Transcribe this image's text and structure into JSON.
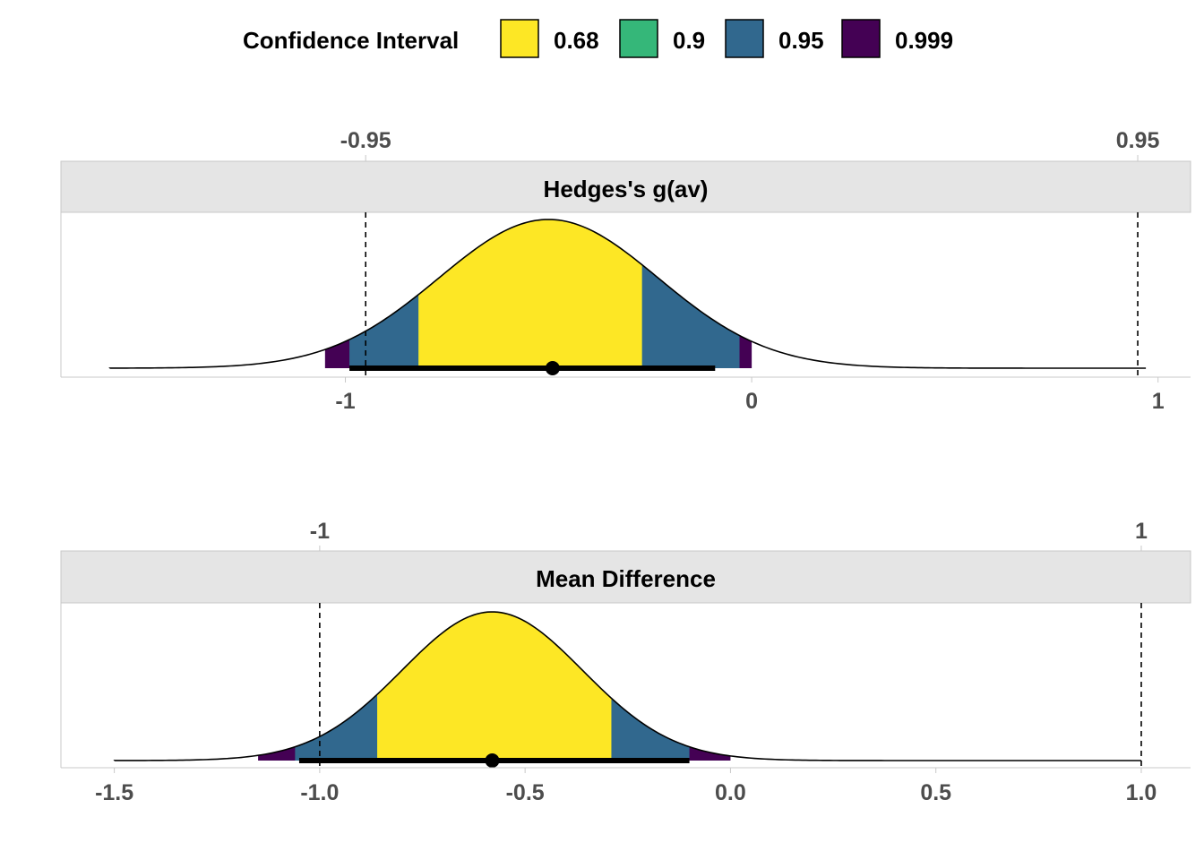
{
  "legend": {
    "title": "Confidence Interval",
    "items": [
      {
        "label": "0.68",
        "color": "#FDE725"
      },
      {
        "label": "0.9",
        "color": "#35B779"
      },
      {
        "label": "0.95",
        "color": "#31688E"
      },
      {
        "label": "0.999",
        "color": "#440154"
      }
    ]
  },
  "chart_data": [
    {
      "type": "area",
      "title": "Hedges's g(av)",
      "estimate": -0.5,
      "se": 0.27,
      "curve_range": [
        -1.58,
        0.97
      ],
      "xlim": [
        -1.7,
        1.08
      ],
      "x_ticks": [
        {
          "value": -1,
          "label": "-1"
        },
        {
          "value": 0,
          "label": "0"
        },
        {
          "value": 1,
          "label": "1"
        }
      ],
      "bounds": [
        {
          "value": -0.95,
          "label": "-0.95"
        },
        {
          "value": 0.95,
          "label": "0.95"
        }
      ],
      "intervals": [
        {
          "level": "0.999",
          "low": -1.05,
          "high": 0.0
        },
        {
          "level": "0.95",
          "low": -0.99,
          "high": -0.03
        },
        {
          "level": "0.9",
          "low": -0.82,
          "high": -0.27
        },
        {
          "level": "0.68",
          "low": -0.82,
          "high": -0.27
        }
      ],
      "point_interval": {
        "low": -0.99,
        "high": -0.09,
        "estimate": -0.49
      }
    },
    {
      "type": "area",
      "title": "Mean Difference",
      "estimate": -0.58,
      "se": 0.22,
      "curve_range": [
        -1.5,
        1.0
      ],
      "xlim": [
        -1.63,
        1.12
      ],
      "x_ticks": [
        {
          "value": -1.5,
          "label": "-1.5"
        },
        {
          "value": -1.0,
          "label": "-1.0"
        },
        {
          "value": -0.5,
          "label": "-0.5"
        },
        {
          "value": 0.0,
          "label": "0.0"
        },
        {
          "value": 0.5,
          "label": "0.5"
        },
        {
          "value": 1.0,
          "label": "1.0"
        }
      ],
      "bounds": [
        {
          "value": -1,
          "label": "-1"
        },
        {
          "value": 1,
          "label": "1"
        }
      ],
      "intervals": [
        {
          "level": "0.999",
          "low": -1.15,
          "high": 0.0
        },
        {
          "level": "0.95",
          "low": -1.06,
          "high": -0.1
        },
        {
          "level": "0.9",
          "low": -0.86,
          "high": -0.29
        },
        {
          "level": "0.68",
          "low": -0.86,
          "high": -0.29
        }
      ],
      "point_interval": {
        "low": -1.05,
        "high": -0.1,
        "estimate": -0.58
      }
    }
  ]
}
